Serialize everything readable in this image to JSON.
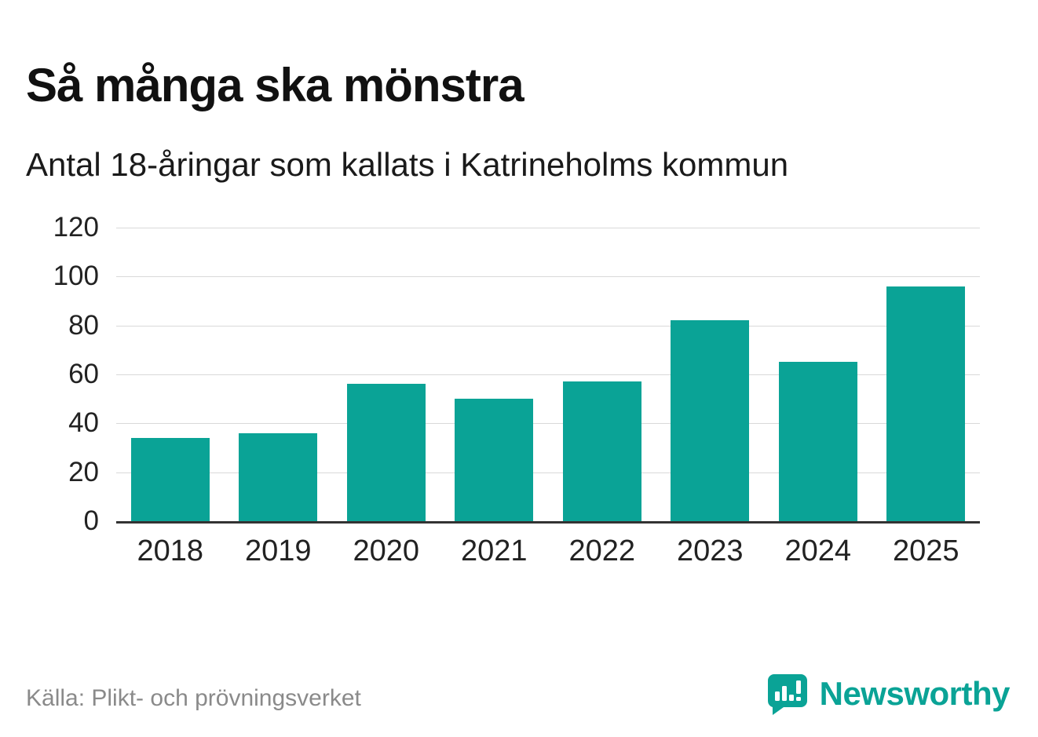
{
  "header": {
    "title": "Så många ska mönstra",
    "subtitle": "Antal 18-åringar som kallats i Katrineholms kommun"
  },
  "chart_data": {
    "type": "bar",
    "categories": [
      "2018",
      "2019",
      "2020",
      "2021",
      "2022",
      "2023",
      "2024",
      "2025"
    ],
    "values": [
      34,
      36,
      56,
      50,
      57,
      82,
      65,
      96
    ],
    "title": "Så många ska mönstra",
    "subtitle": "Antal 18-åringar som kallats i Katrineholms kommun",
    "xlabel": "",
    "ylabel": "",
    "ylim": [
      0,
      120
    ],
    "yticks": [
      0,
      20,
      40,
      60,
      80,
      100,
      120
    ],
    "grid": true,
    "legend": false
  },
  "footer": {
    "source": "Källa: Plikt- och prövningsverket",
    "brand": "Newsworthy"
  },
  "colors": {
    "accent": "#0aa396",
    "grid": "#d9d9d9",
    "axis": "#333333",
    "text": "#1a1a1a",
    "muted": "#8a8a8a"
  },
  "icons": {
    "logo": "newsworthy-speech-bubble-chart-icon"
  }
}
